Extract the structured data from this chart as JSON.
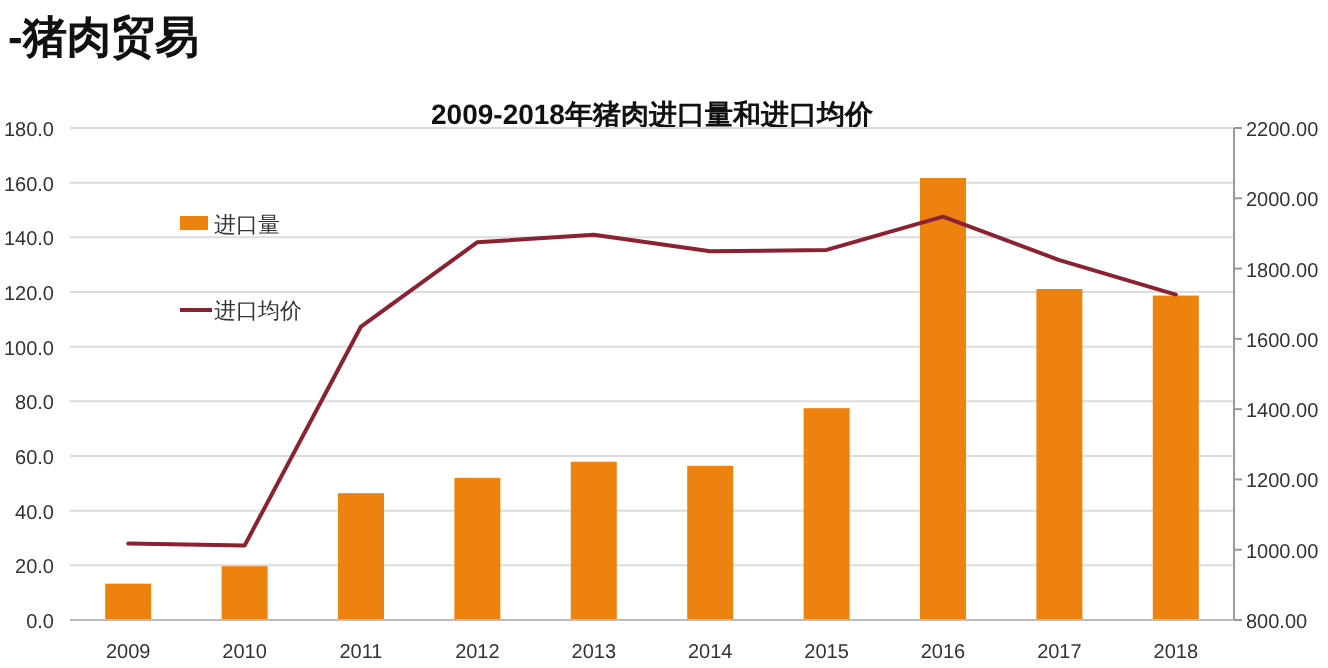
{
  "chart_data": {
    "type": "bar",
    "title": "-猪肉贸易",
    "subtitle": "2009-2018年猪肉进口量和进口均价",
    "categories": [
      "2009",
      "2010",
      "2011",
      "2012",
      "2013",
      "2014",
      "2015",
      "2016",
      "2017",
      "2018"
    ],
    "series": [
      {
        "name": "进口量",
        "color": "#ee820f",
        "values": [
          13.3,
          19.7,
          46.4,
          52.0,
          57.9,
          56.4,
          77.5,
          161.7,
          121.1,
          118.7
        ]
      },
      {
        "name": "进口均价",
        "type": "line",
        "axis": "y2",
        "color": "#8b2232",
        "values": [
          1018,
          1012,
          1635,
          1875,
          1896,
          1849,
          1853,
          1948,
          1824,
          1726
        ]
      }
    ],
    "ylim": [
      0,
      180
    ],
    "yticks": [
      {
        "value": 0,
        "label": "0.0"
      },
      {
        "value": 20,
        "label": "20.0"
      },
      {
        "value": 40,
        "label": "40.0"
      },
      {
        "value": 60,
        "label": "60.0"
      },
      {
        "value": 80,
        "label": "80.0"
      },
      {
        "value": 100,
        "label": "100.0"
      },
      {
        "value": 120,
        "label": "120.0"
      },
      {
        "value": 140,
        "label": "140.0"
      },
      {
        "value": 160,
        "label": "160.0"
      },
      {
        "value": 180,
        "label": "180.0"
      }
    ],
    "y2lim": [
      800,
      2200
    ],
    "y2ticks": [
      {
        "value": 800,
        "label": "800.00"
      },
      {
        "value": 1000,
        "label": "1000.00"
      },
      {
        "value": 1200,
        "label": "1200.00"
      },
      {
        "value": 1400,
        "label": "1400.00"
      },
      {
        "value": 1600,
        "label": "1600.00"
      },
      {
        "value": 1800,
        "label": "1800.00"
      },
      {
        "value": 2000,
        "label": "2000.00"
      },
      {
        "value": 2200,
        "label": "2200.00"
      }
    ],
    "grid": "y",
    "legend": "top left",
    "marker": "none",
    "line_style": "solid"
  }
}
